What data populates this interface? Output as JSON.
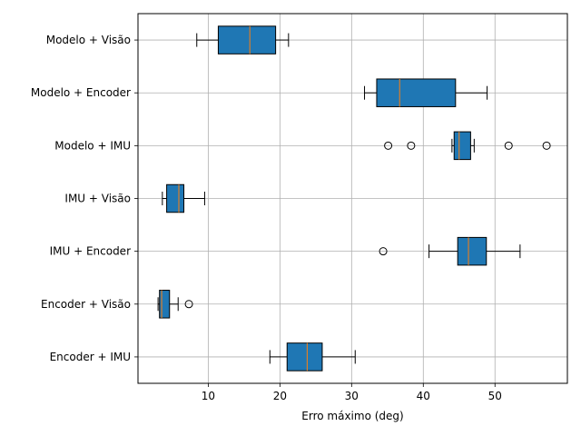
{
  "chart_data": {
    "type": "boxplot",
    "orientation": "horizontal",
    "xlabel": "Erro máximo (deg)",
    "ylabel": "",
    "title": "",
    "xlim": [
      0.2,
      60.1
    ],
    "xticks": [
      10,
      20,
      30,
      40,
      50
    ],
    "grid": true,
    "box_color": "#1f77b4",
    "median_color": "#ff7f0e",
    "categories": [
      "Modelo + Visão",
      "Modelo + Encoder",
      "Modelo + IMU",
      "IMU + Visão",
      "IMU + Encoder",
      "Encoder + Visão",
      "Encoder + IMU"
    ],
    "boxes": [
      {
        "label": "Modelo + Visão",
        "whislo": 8.4,
        "q1": 11.4,
        "med": 15.8,
        "q3": 19.4,
        "whishi": 21.2,
        "fliers": []
      },
      {
        "label": "Modelo + Encoder",
        "whislo": 31.8,
        "q1": 33.5,
        "med": 36.7,
        "q3": 44.5,
        "whishi": 48.9,
        "fliers": []
      },
      {
        "label": "Modelo + IMU",
        "whislo": 44.0,
        "q1": 44.3,
        "med": 45.0,
        "q3": 46.6,
        "whishi": 47.1,
        "fliers": [
          35.1,
          38.3,
          51.9,
          57.2
        ]
      },
      {
        "label": "IMU + Visão",
        "whislo": 3.6,
        "q1": 4.2,
        "med": 5.9,
        "q3": 6.6,
        "whishi": 9.5,
        "fliers": []
      },
      {
        "label": "IMU + Encoder",
        "whislo": 40.8,
        "q1": 44.8,
        "med": 46.3,
        "q3": 48.8,
        "whishi": 53.5,
        "fliers": [
          34.4
        ]
      },
      {
        "label": "Encoder + Visão",
        "whislo": 3.0,
        "q1": 3.2,
        "med": 3.5,
        "q3": 4.6,
        "whishi": 5.8,
        "fliers": [
          7.3
        ]
      },
      {
        "label": "Encoder + IMU",
        "whislo": 18.6,
        "q1": 21.0,
        "med": 23.8,
        "q3": 25.9,
        "whishi": 30.5,
        "fliers": []
      }
    ]
  }
}
